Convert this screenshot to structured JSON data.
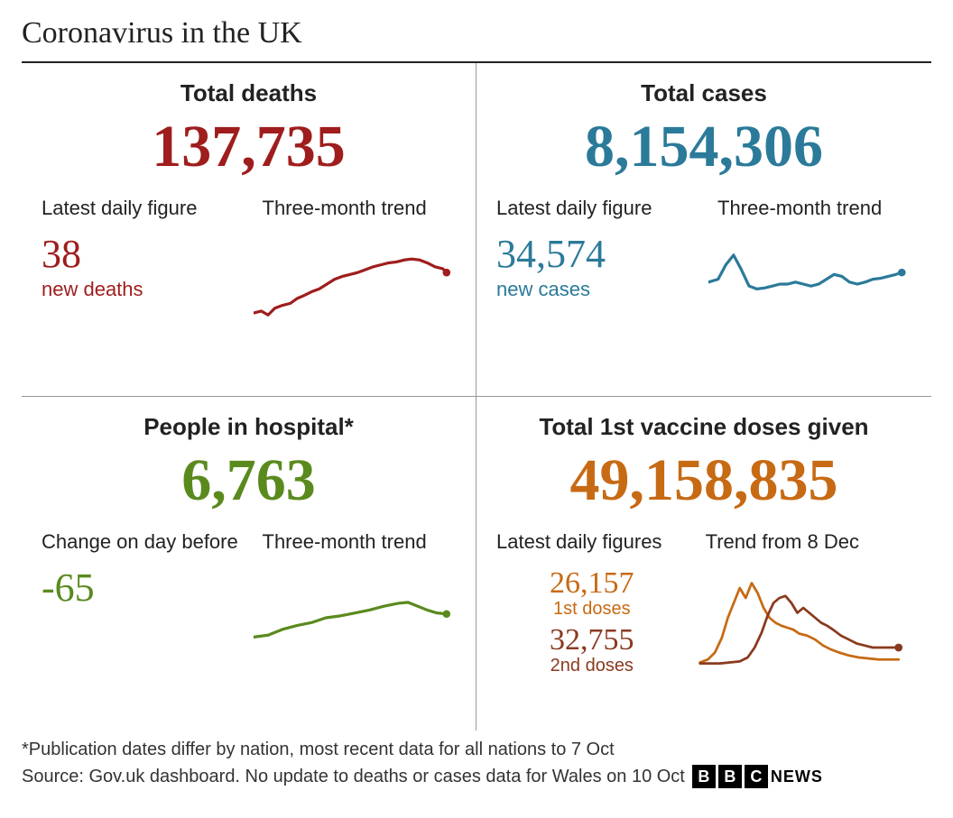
{
  "title": "Coronavirus in the UK",
  "colors": {
    "deaths": "#9f1d1d",
    "cases": "#2b7a99",
    "hospital": "#5a8a1e",
    "vaccine": "#c76a14",
    "vaccine2": "#8a3a1e",
    "text": "#222222",
    "divider": "#999999"
  },
  "panels": {
    "deaths": {
      "title": "Total deaths",
      "big_value": "137,735",
      "sub1_label": "Latest daily figure",
      "sub1_value": "38",
      "sub1_caption": "new deaths",
      "sub2_label": "Three-month trend",
      "spark": {
        "stroke_width": 3,
        "end_dot": true,
        "points": [
          [
            0,
            80
          ],
          [
            8,
            78
          ],
          [
            15,
            82
          ],
          [
            22,
            75
          ],
          [
            30,
            72
          ],
          [
            38,
            70
          ],
          [
            45,
            65
          ],
          [
            52,
            62
          ],
          [
            60,
            58
          ],
          [
            68,
            55
          ],
          [
            76,
            50
          ],
          [
            84,
            45
          ],
          [
            92,
            42
          ],
          [
            100,
            40
          ],
          [
            108,
            38
          ],
          [
            116,
            35
          ],
          [
            124,
            32
          ],
          [
            132,
            30
          ],
          [
            140,
            28
          ],
          [
            148,
            27
          ],
          [
            156,
            25
          ],
          [
            164,
            24
          ],
          [
            172,
            25
          ],
          [
            180,
            28
          ],
          [
            188,
            32
          ],
          [
            196,
            34
          ],
          [
            200,
            38
          ]
        ]
      }
    },
    "cases": {
      "title": "Total cases",
      "big_value": "8,154,306",
      "sub1_label": "Latest daily figure",
      "sub1_value": "34,574",
      "sub1_caption": "new cases",
      "sub2_label": "Three-month trend",
      "spark": {
        "stroke_width": 3,
        "end_dot": true,
        "points": [
          [
            0,
            48
          ],
          [
            10,
            45
          ],
          [
            18,
            30
          ],
          [
            26,
            20
          ],
          [
            34,
            35
          ],
          [
            42,
            52
          ],
          [
            50,
            55
          ],
          [
            58,
            54
          ],
          [
            66,
            52
          ],
          [
            74,
            50
          ],
          [
            82,
            50
          ],
          [
            90,
            48
          ],
          [
            98,
            50
          ],
          [
            106,
            52
          ],
          [
            114,
            50
          ],
          [
            122,
            45
          ],
          [
            130,
            40
          ],
          [
            138,
            42
          ],
          [
            146,
            48
          ],
          [
            154,
            50
          ],
          [
            162,
            48
          ],
          [
            170,
            45
          ],
          [
            178,
            44
          ],
          [
            186,
            42
          ],
          [
            194,
            40
          ],
          [
            200,
            38
          ]
        ]
      }
    },
    "hospital": {
      "title": "People in hospital*",
      "big_value": "6,763",
      "sub1_label": "Change on day before",
      "sub1_value": "-65",
      "sub1_caption": "",
      "sub2_label": "Three-month trend",
      "spark": {
        "stroke_width": 3,
        "end_dot": true,
        "points": [
          [
            0,
            70
          ],
          [
            15,
            68
          ],
          [
            30,
            62
          ],
          [
            45,
            58
          ],
          [
            60,
            55
          ],
          [
            75,
            50
          ],
          [
            90,
            48
          ],
          [
            105,
            45
          ],
          [
            120,
            42
          ],
          [
            135,
            38
          ],
          [
            150,
            35
          ],
          [
            160,
            34
          ],
          [
            170,
            38
          ],
          [
            180,
            42
          ],
          [
            190,
            45
          ],
          [
            200,
            46
          ]
        ]
      }
    },
    "vaccine": {
      "title": "Total 1st vaccine doses given",
      "big_value": "49,158,835",
      "sub1_label": "Latest daily figures",
      "dose1_value": "26,157",
      "dose1_caption": "1st doses",
      "dose2_value": "32,755",
      "dose2_caption": "2nd doses",
      "sub2_label": "Trend from 8 Dec",
      "spark1": {
        "stroke_width": 2.5,
        "end_dot": false,
        "points": [
          [
            0,
            95
          ],
          [
            8,
            92
          ],
          [
            15,
            85
          ],
          [
            22,
            70
          ],
          [
            28,
            50
          ],
          [
            34,
            35
          ],
          [
            40,
            20
          ],
          [
            46,
            30
          ],
          [
            52,
            15
          ],
          [
            58,
            25
          ],
          [
            64,
            40
          ],
          [
            70,
            50
          ],
          [
            76,
            55
          ],
          [
            82,
            58
          ],
          [
            88,
            60
          ],
          [
            94,
            62
          ],
          [
            100,
            66
          ],
          [
            108,
            68
          ],
          [
            116,
            72
          ],
          [
            124,
            78
          ],
          [
            132,
            82
          ],
          [
            140,
            85
          ],
          [
            150,
            88
          ],
          [
            160,
            90
          ],
          [
            170,
            91
          ],
          [
            180,
            92
          ],
          [
            190,
            92
          ],
          [
            200,
            92
          ]
        ]
      },
      "spark2": {
        "stroke_width": 2.5,
        "end_dot": true,
        "points": [
          [
            0,
            96
          ],
          [
            10,
            96
          ],
          [
            20,
            96
          ],
          [
            30,
            95
          ],
          [
            40,
            94
          ],
          [
            48,
            90
          ],
          [
            55,
            80
          ],
          [
            62,
            65
          ],
          [
            68,
            48
          ],
          [
            74,
            35
          ],
          [
            80,
            30
          ],
          [
            86,
            28
          ],
          [
            92,
            35
          ],
          [
            98,
            45
          ],
          [
            104,
            40
          ],
          [
            110,
            45
          ],
          [
            116,
            50
          ],
          [
            122,
            55
          ],
          [
            128,
            58
          ],
          [
            134,
            62
          ],
          [
            142,
            68
          ],
          [
            150,
            72
          ],
          [
            158,
            76
          ],
          [
            166,
            78
          ],
          [
            174,
            80
          ],
          [
            182,
            80
          ],
          [
            190,
            80
          ],
          [
            200,
            80
          ]
        ]
      }
    }
  },
  "footnote": "*Publication dates differ by nation, most recent data for all nations to 7 Oct",
  "source": "Source: Gov.uk dashboard. No update to deaths or cases data for Wales on 10 Oct",
  "logo_text": "NEWS"
}
